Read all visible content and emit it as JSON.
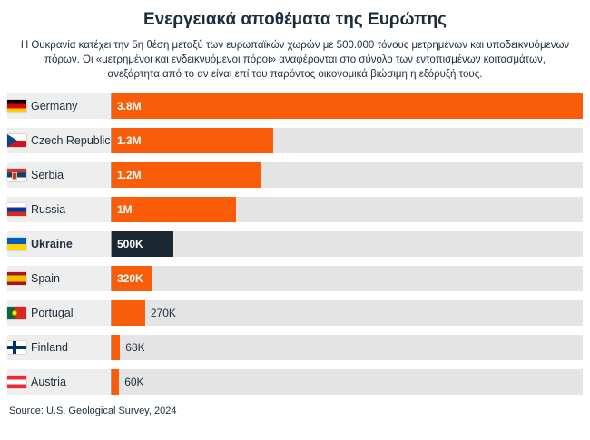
{
  "header": {
    "title": "Ενεργειακά αποθέματα της Ευρώπης",
    "description": "Η Ουκρανία κατέχει την 5η θέση μεταξύ των ευρωπαϊκών χωρών με 500.000 τόνους μετρημένων και υποδεικνυόμενων πόρων. Οι «μετρημένοι και ενδεικνυόμενοι πόροι» αναφέρονται στο σύνολο των εντοπισμένων κοιτασμάτων, ανεξάρτητα από το αν είναι επί του παρόντος οικονομικά βιώσιμη η εξόρυξή τους."
  },
  "footer": {
    "source": "Source: U.S. Geological Survey, 2024"
  },
  "chart_data": {
    "type": "bar",
    "orientation": "horizontal",
    "title": "Ενεργειακά αποθέματα της Ευρώπης",
    "value_axis_max": 3800000,
    "bar_color": "#f95d0a",
    "highlight_bar_color": "#1a2832",
    "track_color": "#e4e4e4",
    "legend_position": "none",
    "grid": false,
    "categories": [
      "Germany",
      "Czech Republic",
      "Serbia",
      "Russia",
      "Ukraine",
      "Spain",
      "Portugal",
      "Finland",
      "Austria"
    ],
    "values": [
      3800000,
      1300000,
      1200000,
      1000000,
      500000,
      320000,
      270000,
      68000,
      60000
    ],
    "value_labels": [
      "3.8M",
      "1.3M",
      "1.2M",
      "1M",
      "500K",
      "320K",
      "270K",
      "68K",
      "60K"
    ],
    "rows": [
      {
        "country": "Germany",
        "flag": "de",
        "value": 3800000,
        "value_label": "3.8M",
        "label_inside": true,
        "highlight": false
      },
      {
        "country": "Czech Republic",
        "flag": "cz",
        "value": 1300000,
        "value_label": "1.3M",
        "label_inside": true,
        "highlight": false
      },
      {
        "country": "Serbia",
        "flag": "rs",
        "value": 1200000,
        "value_label": "1.2M",
        "label_inside": true,
        "highlight": false
      },
      {
        "country": "Russia",
        "flag": "ru",
        "value": 1000000,
        "value_label": "1M",
        "label_inside": true,
        "highlight": false
      },
      {
        "country": "Ukraine",
        "flag": "ua",
        "value": 500000,
        "value_label": "500K",
        "label_inside": true,
        "highlight": true
      },
      {
        "country": "Spain",
        "flag": "es",
        "value": 320000,
        "value_label": "320K",
        "label_inside": true,
        "highlight": false
      },
      {
        "country": "Portugal",
        "flag": "pt",
        "value": 270000,
        "value_label": "270K",
        "label_inside": false,
        "highlight": false
      },
      {
        "country": "Finland",
        "flag": "fi",
        "value": 68000,
        "value_label": "68K",
        "label_inside": false,
        "highlight": false
      },
      {
        "country": "Austria",
        "flag": "at",
        "value": 60000,
        "value_label": "60K",
        "label_inside": false,
        "highlight": false
      }
    ]
  }
}
